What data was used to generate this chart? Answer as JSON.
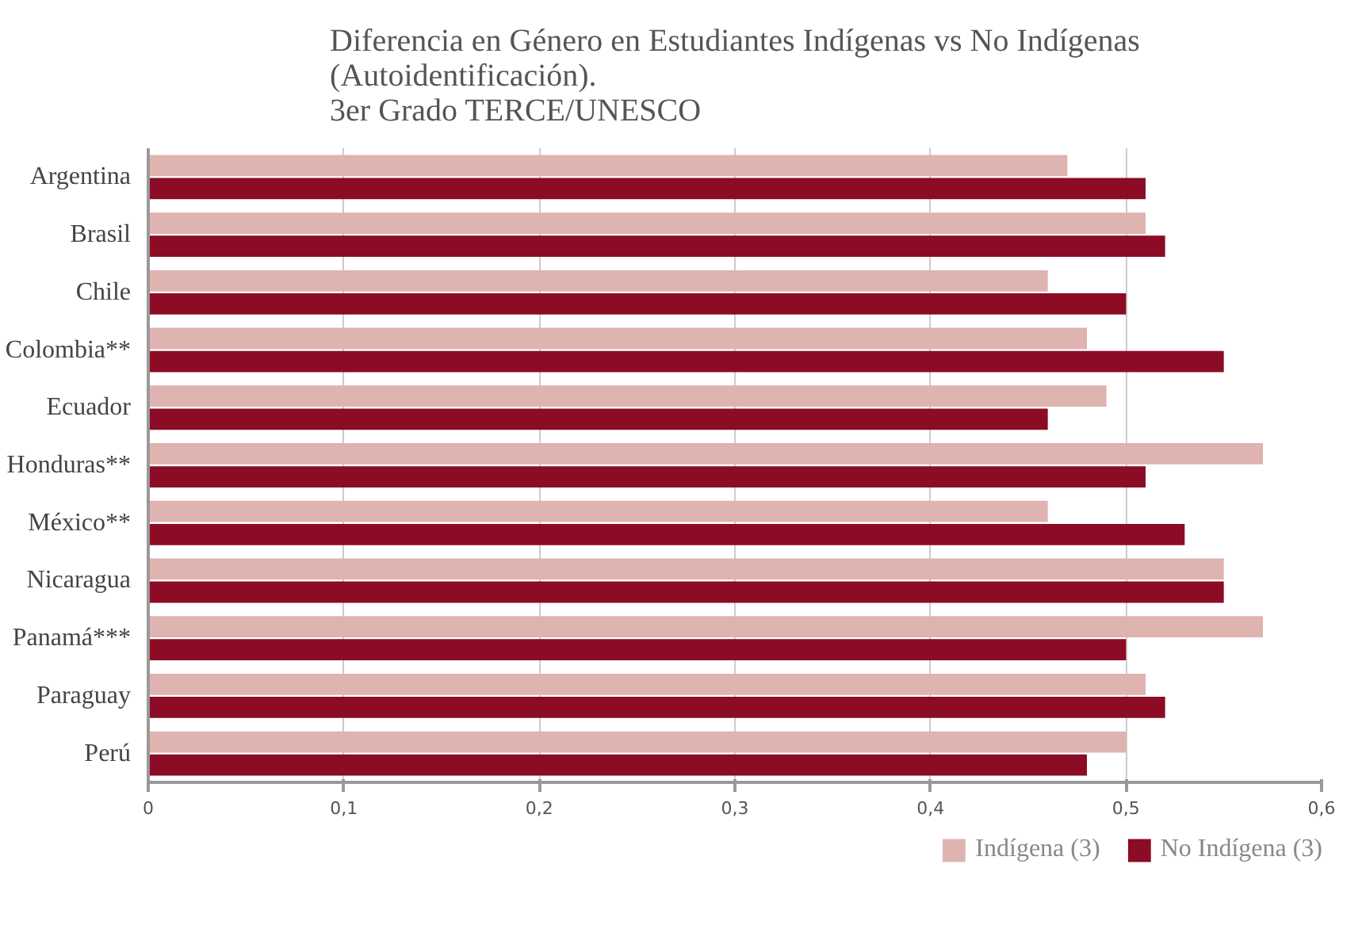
{
  "chart_data": {
    "type": "bar",
    "orientation": "horizontal",
    "title": "Diferencia en Género en Estudiantes Indígenas vs No Indígenas\n(Autoidentificación).\n3er Grado TERCE/UNESCO",
    "categories": [
      "Argentina",
      "Brasil",
      "Chile",
      "Colombia**",
      "Ecuador",
      "Honduras**",
      "México**",
      "Nicaragua",
      "Panamá***",
      "Paraguay",
      "Perú"
    ],
    "series": [
      {
        "name": "Indígena (3)",
        "color": "#deb3b0",
        "values": [
          0.47,
          0.51,
          0.46,
          0.48,
          0.49,
          0.57,
          0.46,
          0.55,
          0.57,
          0.51,
          0.5
        ]
      },
      {
        "name": "No Indígena (3)",
        "color": "#8c0b25",
        "values": [
          0.51,
          0.52,
          0.5,
          0.55,
          0.46,
          0.51,
          0.53,
          0.55,
          0.5,
          0.52,
          0.48
        ]
      }
    ],
    "xlim": [
      0,
      0.6
    ],
    "xticks": [
      {
        "value": 0,
        "label": "0"
      },
      {
        "value": 0.1,
        "label": "0,1"
      },
      {
        "value": 0.2,
        "label": "0,2"
      },
      {
        "value": 0.3,
        "label": "0,3"
      },
      {
        "value": 0.4,
        "label": "0,4"
      },
      {
        "value": 0.5,
        "label": "0,5"
      },
      {
        "value": 0.6,
        "label": "0,6"
      }
    ],
    "grid": "x",
    "legend": "bottom right"
  }
}
